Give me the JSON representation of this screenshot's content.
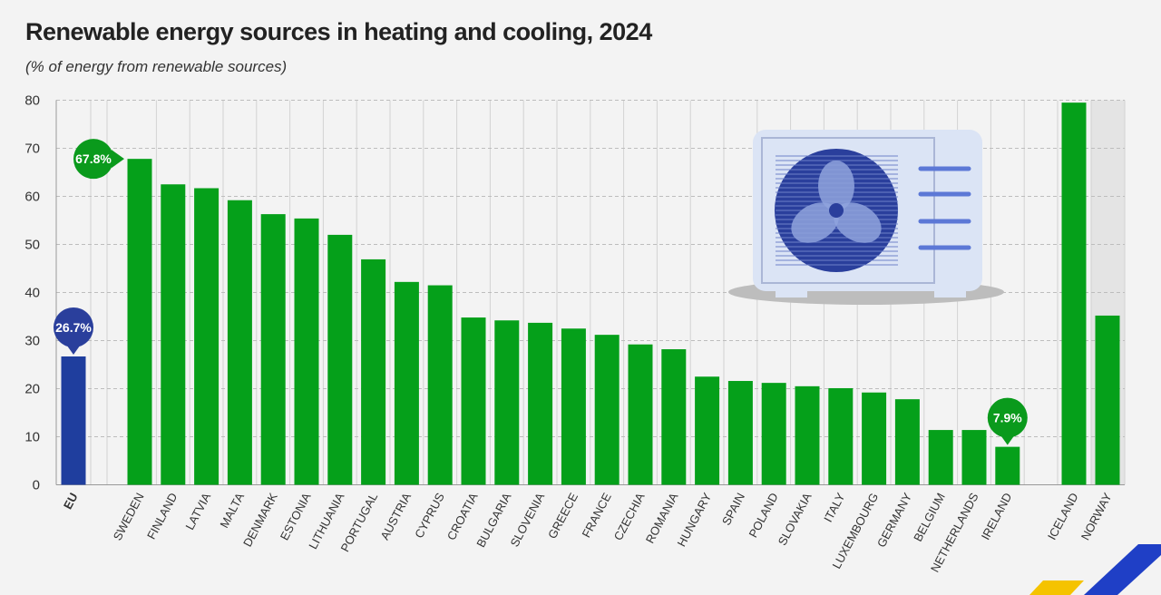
{
  "chart_data": {
    "type": "bar",
    "title": "Renewable energy sources in heating and cooling, 2024",
    "subtitle": "(% of energy from renewable sources)",
    "ylim": [
      0,
      80
    ],
    "yticks": [
      "0",
      "10",
      "20",
      "30",
      "40",
      "50",
      "60",
      "70",
      "80"
    ],
    "grid": true,
    "categories": [
      "EU",
      "SWEDEN",
      "FINLAND",
      "LATVIA",
      "MALTA",
      "DENMARK",
      "ESTONIA",
      "LITHUANIA",
      "PORTUGAL",
      "AUSTRIA",
      "CYPRUS",
      "CROATIA",
      "BULGARIA",
      "SLOVENIA",
      "GREECE",
      "FRANCE",
      "CZECHIA",
      "ROMANIA",
      "HUNGARY",
      "SPAIN",
      "POLAND",
      "SLOVAKIA",
      "ITALY",
      "LUXEMBOURG",
      "GERMANY",
      "BELGIUM",
      "NETHERLANDS",
      "IRELAND",
      "ICELAND",
      "NORWAY"
    ],
    "values": [
      26.7,
      67.8,
      62.5,
      61.7,
      59.2,
      56.3,
      55.4,
      52.0,
      46.9,
      42.2,
      41.5,
      34.8,
      34.2,
      33.7,
      32.5,
      31.2,
      29.2,
      28.2,
      22.5,
      21.6,
      21.2,
      20.5,
      20.1,
      19.2,
      17.8,
      11.4,
      11.4,
      7.9,
      79.5,
      35.2
    ],
    "annotations": [
      {
        "category": "EU",
        "label": "26.7%",
        "color": "#2a3f9c"
      },
      {
        "category": "SWEDEN",
        "label": "67.8%",
        "color": "#0a9a1c"
      },
      {
        "category": "IRELAND",
        "label": "7.9%",
        "color": "#0a9a1c"
      }
    ],
    "colors": {
      "eu": "#1f3e9e",
      "country": "#05a01a",
      "grid": "#c8c8c8"
    }
  }
}
